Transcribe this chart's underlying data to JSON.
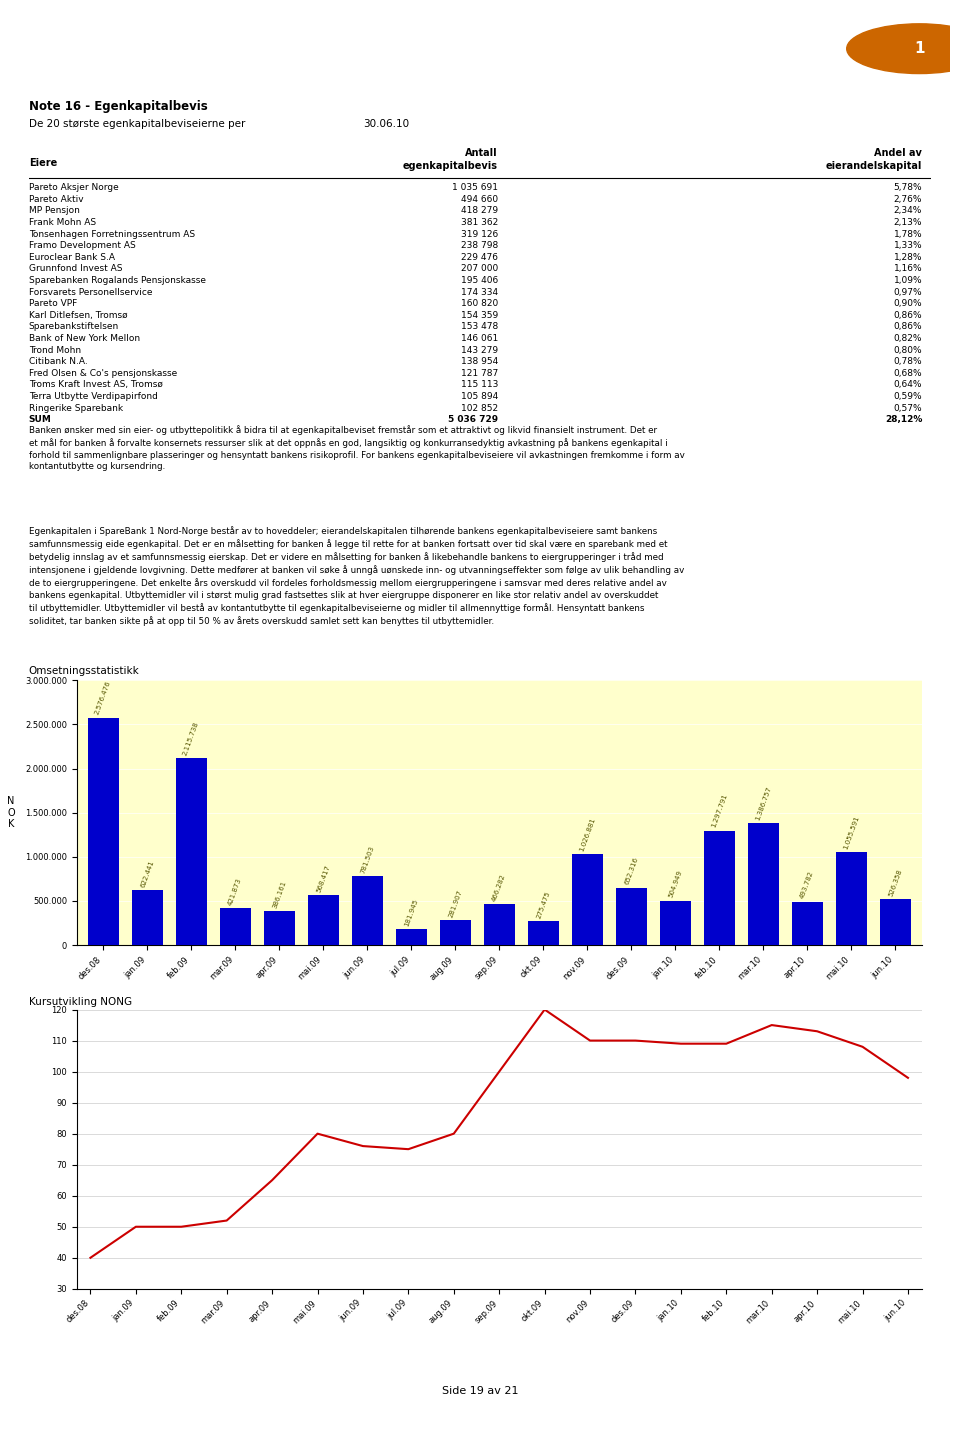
{
  "title_note": "Note 16 - Egenkapitalbevis",
  "subtitle": "De 20 største egenkapitalbeviseierne per",
  "date": "30.06.10",
  "table_headers": [
    "Eiere",
    "Antall\negenkapitalbevis",
    "Andel av\neierandelskapital"
  ],
  "table_data": [
    [
      "Pareto Aksjer Norge",
      "1 035 691",
      "5,78%"
    ],
    [
      "Pareto Aktiv",
      "494 660",
      "2,76%"
    ],
    [
      "MP Pensjon",
      "418 279",
      "2,34%"
    ],
    [
      "Frank Mohn AS",
      "381 362",
      "2,13%"
    ],
    [
      "Tonsenhagen Forretningssentrum AS",
      "319 126",
      "1,78%"
    ],
    [
      "Framo Development AS",
      "238 798",
      "1,33%"
    ],
    [
      "Euroclear Bank S.A",
      "229 476",
      "1,28%"
    ],
    [
      "Grunnfond Invest AS",
      "207 000",
      "1,16%"
    ],
    [
      "Sparebanken Rogalands Pensjonskasse",
      "195 406",
      "1,09%"
    ],
    [
      "Forsvarets Personellservice",
      "174 334",
      "0,97%"
    ],
    [
      "Pareto VPF",
      "160 820",
      "0,90%"
    ],
    [
      "Karl Ditlefsen, Tromsø",
      "154 359",
      "0,86%"
    ],
    [
      "Sparebankstiftelsen",
      "153 478",
      "0,86%"
    ],
    [
      "Bank of New York Mellon",
      "146 061",
      "0,82%"
    ],
    [
      "Trond Mohn",
      "143 279",
      "0,80%"
    ],
    [
      "Citibank N.A.",
      "138 954",
      "0,78%"
    ],
    [
      "Fred Olsen & Co's pensjonskasse",
      "121 787",
      "0,68%"
    ],
    [
      "Troms Kraft Invest AS, Tromsø",
      "115 113",
      "0,64%"
    ],
    [
      "Terra Utbytte Verdipapirfond",
      "105 894",
      "0,59%"
    ],
    [
      "Ringerike Sparebank",
      "102 852",
      "0,57%"
    ],
    [
      "SUM",
      "5 036 729",
      "28,12%"
    ]
  ],
  "body_text_1": "Banken ønsker med sin eier- og utbyttepolitikk å bidra til at egenkapitalbeviset fremstår som et attraktivt og likvid finansielt instrument.  Det er et mål for banken å forvalte konsernets ressurser slik at det oppnås en god, langsiktig og konkurransedyktig avkastning på bankens egenkapital i forhold til sammenlignbare plasseringer og hensyntatt bankens risikoprofil.  For bankens egenkapitalbeviseiere vil avkastningen fremkomme i form av kontantutbytte og kursendring.",
  "body_text_2": "Egenkapitalen i SpareBank 1 Nord-Norge består av to hoveddeler; eierandelskapitalen tilhørende bankens egenkapitalbeviseiere samt bankens samfunnsmessig eide egenkapital.  Det er en målsetting for banken å legge til rette for at banken fortsatt over tid skal være en sparebank med et betydelig innslag av et samfunnsmessig eierskap.  Det er videre en målsetting for banken å likebehandle bankens to eiergrupperinger i tråd med intensjonene i gjeldende lovgivning.  Dette medfører at banken vil søke å unngå uønskede inn- og utvanningseffekter som følge av ulik behandling av de to eiergrupperingene.  Det enkelte års overskudd vil fordeles forholdsmessig mellom eiergrupperingene i samsvar med deres relative andel av bankens egenkapital.  Utbyttemidler vil i størst mulig grad fastsettes slik at hver eiergruppe disponerer en like stor relativ andel av overskuddet til utbyttemidler.  Utbyttemidler vil bestå av kontantutbytte til egenkapitalbeviseierne og midler til allmennyttige formål.  Hensyntatt bankens soliditet, tar banken sikte på at opp til 50 % av årets overskudd samlet sett kan benyttes til utbyttemidler.",
  "bar_chart_title": "Omsetningsstatistikk",
  "bar_ylabel": "N\nO\nK",
  "bar_months": [
    "des.08",
    "jan.09",
    "feb.09",
    "mar.09",
    "apr.09",
    "mai.09",
    "jun.09",
    "jul.09",
    "aug.09",
    "sep.09",
    "okt.09",
    "nov.09",
    "des.09",
    "jan.10",
    "feb.10",
    "mar.10",
    "apr.10",
    "mai.10",
    "jun.10"
  ],
  "bar_values": [
    2576476,
    622441,
    2115738,
    421873,
    386161,
    568417,
    781503,
    181945,
    281907,
    466282,
    275475,
    1026881,
    652316,
    504949,
    1297791,
    1386757,
    493782,
    1055591,
    526358
  ],
  "bar_color": "#0000cc",
  "bar_bg_color": "#ffffcc",
  "bar_ylim": [
    0,
    3000000
  ],
  "bar_yticks": [
    0,
    500000,
    1000000,
    1500000,
    2000000,
    2500000,
    3000000
  ],
  "bar_ytick_labels": [
    "0",
    "500.000",
    "1.000.000",
    "1.500.000",
    "2.000.000",
    "2.500.000",
    "3.000.000"
  ],
  "line_chart_title": "Kursutvikling NONG",
  "line_months": [
    "des.08",
    "jan.09",
    "feb.09",
    "mar.09",
    "apr.09",
    "mai.09",
    "jun.09",
    "jul.09",
    "aug.09",
    "sep.09",
    "okt.09",
    "nov.09",
    "des.09",
    "jan.10",
    "feb.10",
    "mar.10",
    "apr.10",
    "mai.10",
    "jun.10"
  ],
  "line_values": [
    40,
    50,
    50,
    52,
    65,
    80,
    76,
    75,
    80,
    100,
    120,
    110,
    110,
    109,
    109,
    115,
    113,
    108,
    98
  ],
  "line_color": "#cc0000",
  "line_bg_color": "#ffffff",
  "line_ylim": [
    30,
    120
  ],
  "line_yticks": [
    30,
    40,
    50,
    60,
    70,
    80,
    90,
    100,
    110,
    120
  ],
  "page_footer": "Side 19 av 21",
  "logo_bg": "#1a1a2e",
  "background_color": "#ffffff"
}
